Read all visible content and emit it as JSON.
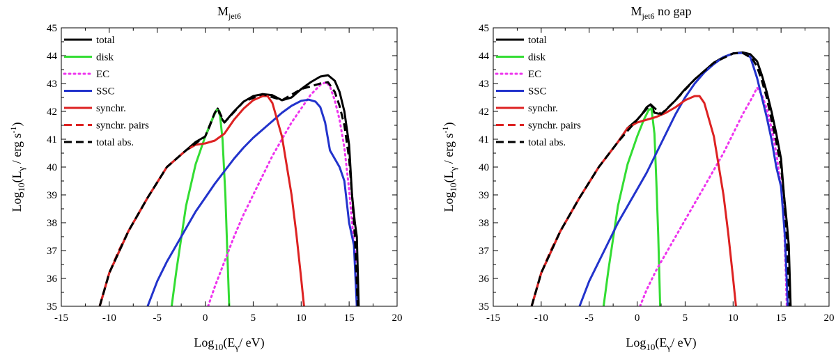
{
  "chart_data": [
    {
      "type": "line",
      "title": "M",
      "title_sub": "jet6",
      "title_suffix": "",
      "xlabel": {
        "prefix": "Log",
        "sub1": "10",
        "mid": "(E",
        "sub2": "γ",
        "suffix": "/ eV)"
      },
      "ylabel": {
        "prefix": "Log",
        "sub1": "10",
        "mid": "(L",
        "sub2": "γ",
        "mid2": " / erg s",
        "sup": "-1",
        "suffix": ")"
      },
      "xlim": [
        -15,
        20
      ],
      "ylim": [
        35,
        45
      ],
      "xticks": [
        "-15",
        "-10",
        "-5",
        "0",
        "5",
        "10",
        "15",
        "20"
      ],
      "yticks": [
        "35",
        "36",
        "37",
        "38",
        "39",
        "40",
        "41",
        "42",
        "43",
        "44",
        "45"
      ],
      "grid": false,
      "legend_position": "top-left",
      "series": [
        {
          "name": "total",
          "color": "#000000",
          "style": "solid",
          "x": [
            -11,
            -10,
            -8,
            -6,
            -4,
            -2,
            -1,
            0,
            0.5,
            1,
            1.3,
            1.6,
            2,
            3,
            4,
            5,
            6,
            7,
            8,
            9,
            10,
            11,
            12,
            12.8,
            13.5,
            14,
            14.5,
            15,
            15.3,
            15.6,
            15.8,
            16
          ],
          "y": [
            35,
            36.2,
            37.7,
            38.9,
            40.0,
            40.6,
            40.9,
            41.1,
            41.5,
            41.95,
            42.1,
            41.8,
            41.6,
            42.0,
            42.35,
            42.55,
            42.62,
            42.58,
            42.4,
            42.5,
            42.8,
            43.05,
            43.25,
            43.3,
            43.1,
            42.7,
            42.0,
            40.8,
            39.0,
            38.0,
            37.5,
            35
          ]
        },
        {
          "name": "disk",
          "color": "#33dd33",
          "style": "solid",
          "x": [
            -3.5,
            -3,
            -2,
            -1,
            0,
            0.7,
            1.2,
            1.5,
            1.8,
            2.1,
            2.3,
            2.5
          ],
          "y": [
            35,
            36.3,
            38.6,
            40.1,
            41.1,
            41.7,
            42.05,
            42.0,
            41.0,
            39.0,
            37.0,
            35
          ]
        },
        {
          "name": "EC",
          "color": "#ee33ee",
          "style": "dotted",
          "x": [
            0.3,
            1,
            2,
            3,
            4,
            5,
            6,
            7,
            8,
            9,
            10,
            11,
            12,
            12.6,
            13,
            13.5,
            14,
            14.5,
            15,
            15.3,
            15.6,
            15.8
          ],
          "y": [
            35,
            35.7,
            36.6,
            37.5,
            38.3,
            39.0,
            39.7,
            40.4,
            41.0,
            41.6,
            42.1,
            42.6,
            42.95,
            43.05,
            42.9,
            42.4,
            41.7,
            40.7,
            39.2,
            38.0,
            37.0,
            35
          ]
        },
        {
          "name": "SSC",
          "color": "#2233cc",
          "style": "solid",
          "x": [
            -6,
            -5,
            -4,
            -3,
            -2,
            -1,
            0,
            1,
            2,
            3,
            4,
            5,
            6,
            7,
            8,
            9,
            10,
            10.8,
            11.5,
            12,
            12.5,
            13,
            13.5,
            14,
            14.5,
            15,
            15.5,
            15.8
          ],
          "y": [
            35,
            35.9,
            36.6,
            37.2,
            37.8,
            38.4,
            38.9,
            39.4,
            39.85,
            40.3,
            40.7,
            41.05,
            41.35,
            41.65,
            41.95,
            42.2,
            42.38,
            42.42,
            42.35,
            42.15,
            41.6,
            40.6,
            40.3,
            40.0,
            39.5,
            38.0,
            37.2,
            35
          ]
        },
        {
          "name": "synchr.",
          "color": "#dd2222",
          "style": "solid",
          "x": [
            -11,
            -10,
            -8,
            -6,
            -4,
            -2,
            -1,
            0,
            1,
            2,
            3,
            4,
            5,
            6,
            6.5,
            7,
            8,
            9,
            9.5,
            10,
            10.3
          ],
          "y": [
            35,
            36.2,
            37.7,
            38.9,
            40.0,
            40.6,
            40.8,
            40.85,
            40.95,
            41.2,
            41.7,
            42.1,
            42.4,
            42.55,
            42.55,
            42.3,
            41.1,
            39.0,
            37.6,
            36.0,
            35
          ]
        },
        {
          "name": "synchr. pairs",
          "color": "#dd2222",
          "style": "dashed",
          "x": [
            -11,
            -10,
            -9,
            -8,
            -7,
            -6,
            -5,
            -4,
            -3
          ],
          "y": [
            35,
            36.2,
            37.0,
            37.7,
            38.3,
            38.9,
            39.45,
            40.0,
            40.3
          ]
        },
        {
          "name": "total abs.",
          "color": "#000000",
          "style": "dashed",
          "x": [
            -11,
            -10,
            -8,
            -6,
            -4,
            -2,
            0,
            1,
            1.3,
            2,
            4,
            6,
            8,
            10,
            12,
            12.8,
            13.5,
            14,
            14.5,
            15,
            15.3,
            15.6,
            15.9
          ],
          "y": [
            35,
            36.2,
            37.7,
            38.9,
            40.0,
            40.6,
            41.1,
            41.95,
            42.1,
            41.6,
            42.35,
            42.62,
            42.4,
            42.8,
            43.0,
            43.05,
            42.7,
            42.2,
            41.5,
            40.3,
            39.0,
            37.5,
            35
          ]
        }
      ]
    },
    {
      "type": "line",
      "title": "M",
      "title_sub": "jet6",
      "title_suffix": " no gap",
      "xlabel": {
        "prefix": "Log",
        "sub1": "10",
        "mid": "(E",
        "sub2": "γ",
        "suffix": "/ eV)"
      },
      "ylabel": {
        "prefix": "Log",
        "sub1": "10",
        "mid": "(L",
        "sub2": "γ",
        "mid2": " / erg s",
        "sup": "-1",
        "suffix": ")"
      },
      "xlim": [
        -15,
        20
      ],
      "ylim": [
        35,
        45
      ],
      "xticks": [
        "-15",
        "-10",
        "-5",
        "0",
        "5",
        "10",
        "15",
        "20"
      ],
      "yticks": [
        "35",
        "36",
        "37",
        "38",
        "39",
        "40",
        "41",
        "42",
        "43",
        "44",
        "45"
      ],
      "grid": false,
      "legend_position": "top-left",
      "series": [
        {
          "name": "total",
          "color": "#000000",
          "style": "solid",
          "x": [
            -11,
            -10,
            -8,
            -6,
            -4,
            -2,
            -1,
            0,
            0.5,
            1,
            1.4,
            1.8,
            2.5,
            3,
            4,
            5,
            6,
            7,
            8,
            9,
            10,
            11,
            11.8,
            12.5,
            13,
            13.5,
            14,
            14.5,
            15,
            15.3,
            15.6,
            15.8,
            16
          ],
          "y": [
            35,
            36.2,
            37.7,
            38.9,
            40.0,
            40.9,
            41.4,
            41.7,
            41.9,
            42.15,
            42.25,
            41.95,
            41.9,
            42.05,
            42.4,
            42.8,
            43.15,
            43.45,
            43.75,
            43.95,
            44.08,
            44.12,
            44.05,
            43.8,
            43.3,
            42.7,
            42.0,
            41.2,
            40.3,
            39.0,
            38.0,
            37.2,
            35
          ]
        },
        {
          "name": "disk",
          "color": "#33dd33",
          "style": "solid",
          "x": [
            -3.5,
            -3,
            -2,
            -1,
            0,
            0.7,
            1.2,
            1.5,
            1.8,
            2.0,
            2.2,
            2.4
          ],
          "y": [
            35,
            36.3,
            38.6,
            40.1,
            41.1,
            41.7,
            42.05,
            42.1,
            41.2,
            39.5,
            37.5,
            35
          ]
        },
        {
          "name": "EC",
          "color": "#ee33ee",
          "style": "dotted",
          "x": [
            0.3,
            1,
            2,
            3,
            4,
            5,
            6,
            7,
            8,
            9,
            10,
            11,
            12,
            12.5,
            13,
            13.5,
            14,
            14.5,
            15,
            15.3,
            15.6
          ],
          "y": [
            35,
            35.6,
            36.3,
            36.9,
            37.5,
            38.1,
            38.7,
            39.3,
            39.9,
            40.5,
            41.2,
            41.9,
            42.5,
            42.85,
            42.6,
            42.1,
            41.4,
            40.5,
            39.3,
            38.2,
            35
          ]
        },
        {
          "name": "SSC",
          "color": "#2233cc",
          "style": "solid",
          "x": [
            -6,
            -5,
            -4,
            -3,
            -2,
            -1,
            0,
            1,
            2,
            3,
            4,
            5,
            6,
            7,
            8,
            9,
            10,
            11,
            11.8,
            12.5,
            13,
            13.5,
            14,
            14.5,
            15,
            15.4,
            15.7
          ],
          "y": [
            35,
            35.9,
            36.6,
            37.3,
            38.0,
            38.6,
            39.2,
            39.8,
            40.5,
            41.2,
            41.9,
            42.5,
            43.0,
            43.4,
            43.7,
            43.95,
            44.08,
            44.1,
            43.95,
            43.2,
            42.5,
            41.8,
            41.0,
            40.0,
            39.3,
            37.5,
            35
          ]
        },
        {
          "name": "synchr.",
          "color": "#dd2222",
          "style": "solid",
          "x": [
            -11,
            -10,
            -8,
            -6,
            -4,
            -2,
            -1,
            0,
            1,
            2,
            3,
            4,
            5,
            6,
            6.5,
            7,
            8,
            9,
            9.5,
            10,
            10.3
          ],
          "y": [
            35,
            36.2,
            37.7,
            38.9,
            40.0,
            40.9,
            41.4,
            41.6,
            41.7,
            41.8,
            41.95,
            42.15,
            42.4,
            42.55,
            42.55,
            42.3,
            41.1,
            39.0,
            37.6,
            36.0,
            35
          ]
        },
        {
          "name": "synchr. pairs",
          "color": "#dd2222",
          "style": "dashed",
          "x": [
            -11,
            -10,
            -9,
            -8,
            -7,
            -6,
            -5,
            -4,
            -3
          ],
          "y": [
            35,
            36.2,
            37.0,
            37.7,
            38.3,
            38.9,
            39.45,
            40.0,
            40.45
          ]
        },
        {
          "name": "total abs.",
          "color": "#000000",
          "style": "dashed",
          "x": [
            -11,
            -10,
            -8,
            -6,
            -4,
            -2,
            0,
            1.4,
            2.5,
            4,
            6,
            8,
            10,
            11,
            12,
            12.5,
            13,
            13.5,
            14,
            14.5,
            15,
            15.3,
            15.6,
            15.9
          ],
          "y": [
            35,
            36.2,
            37.7,
            38.9,
            40.0,
            40.9,
            41.7,
            42.25,
            41.9,
            42.4,
            43.15,
            43.75,
            44.08,
            44.1,
            43.9,
            43.6,
            43.1,
            42.5,
            41.7,
            40.9,
            40.0,
            39.0,
            37.5,
            35
          ]
        }
      ]
    }
  ]
}
